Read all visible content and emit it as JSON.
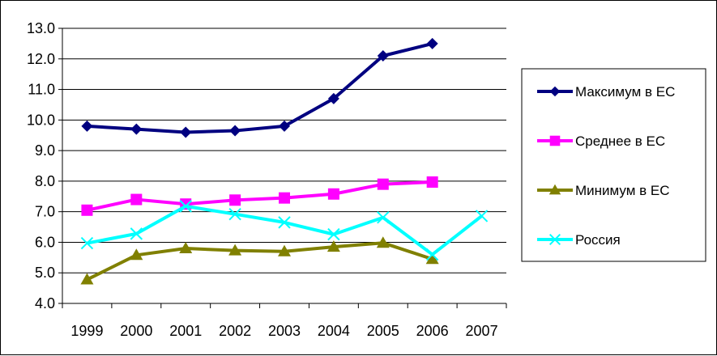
{
  "chart_data": {
    "type": "line",
    "title": "",
    "xlabel": "",
    "ylabel": "",
    "x": [
      "1999",
      "2000",
      "2001",
      "2002",
      "2003",
      "2004",
      "2005",
      "2006",
      "2007"
    ],
    "ylim": [
      4.0,
      13.0
    ],
    "yticks": [
      "4.0",
      "5.0",
      "6.0",
      "7.0",
      "8.0",
      "9.0",
      "10.0",
      "11.0",
      "12.0",
      "13.0"
    ],
    "grid": true,
    "legend_position": "right",
    "series": [
      {
        "name": "Максимум в ЕС",
        "color": "#000080",
        "marker": "diamond",
        "values": [
          9.8,
          9.7,
          9.6,
          9.65,
          9.8,
          10.7,
          12.1,
          12.5,
          null
        ]
      },
      {
        "name": "Среднее в ЕС",
        "color": "#ff00ff",
        "marker": "square",
        "values": [
          7.05,
          7.4,
          7.25,
          7.38,
          7.45,
          7.58,
          7.9,
          7.97,
          null
        ]
      },
      {
        "name": "Минимум в ЕС",
        "color": "#808000",
        "marker": "triangle",
        "values": [
          4.78,
          5.58,
          5.8,
          5.73,
          5.7,
          5.85,
          5.98,
          5.45,
          null
        ]
      },
      {
        "name": "Россия",
        "color": "#00ffff",
        "marker": "x",
        "values": [
          5.97,
          6.28,
          7.18,
          6.92,
          6.65,
          6.26,
          6.81,
          5.6,
          6.86
        ]
      }
    ]
  }
}
